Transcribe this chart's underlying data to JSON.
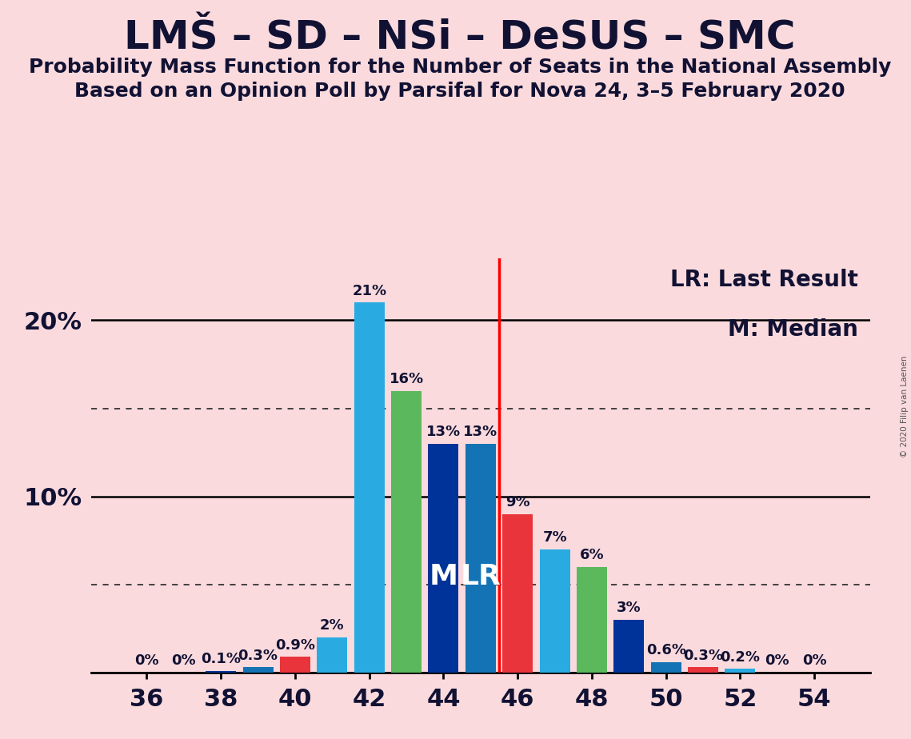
{
  "title": "LMŠ – SD – NSi – DeSUS – SMC",
  "subtitle1": "Probability Mass Function for the Number of Seats in the National Assembly",
  "subtitle2": "Based on an Opinion Poll by Parsifal for Nova 24, 3–5 February 2020",
  "copyright": "© 2020 Filip van Laenen",
  "background_color": "#FADADD",
  "lr_line_x": 45.5,
  "median_seat": 44,
  "lr_seat": 45,
  "legend_lr": "LR: Last Result",
  "legend_m": "M: Median",
  "seats": [
    36,
    37,
    38,
    39,
    40,
    41,
    42,
    43,
    44,
    45,
    46,
    47,
    48,
    49,
    50,
    51,
    52,
    53,
    54
  ],
  "probs": [
    0.0,
    0.0,
    0.1,
    0.3,
    0.9,
    2.0,
    21.0,
    16.0,
    13.0,
    13.0,
    9.0,
    7.0,
    6.0,
    3.0,
    0.6,
    0.3,
    0.2,
    0.0,
    0.0
  ],
  "labels": [
    "0%",
    "0%",
    "0.1%",
    "0.3%",
    "0.9%",
    "2%",
    "21%",
    "16%",
    "13%",
    "13%",
    "9%",
    "7%",
    "6%",
    "3%",
    "0.6%",
    "0.3%",
    "0.2%",
    "0%",
    "0%"
  ],
  "colors": [
    "#29ABE2",
    "#5CB85C",
    "#003399",
    "#1473B5",
    "#E8343A",
    "#29ABE2",
    "#29ABE2",
    "#5CB85C",
    "#003399",
    "#1473B5",
    "#E8343A",
    "#29ABE2",
    "#5CB85C",
    "#003399",
    "#1473B5",
    "#E8343A",
    "#29ABE2",
    "#5CB85C",
    "#003399"
  ],
  "dotted_lines": [
    5.0,
    15.0
  ],
  "solid_lines": [
    10.0,
    20.0
  ],
  "ylim": [
    0,
    23.5
  ],
  "xticks": [
    36,
    38,
    40,
    42,
    44,
    46,
    48,
    50,
    52,
    54
  ],
  "title_fontsize": 36,
  "subtitle_fontsize": 18,
  "label_fontsize": 13,
  "axis_fontsize": 22,
  "legend_fontsize": 20,
  "bar_width": 0.82
}
